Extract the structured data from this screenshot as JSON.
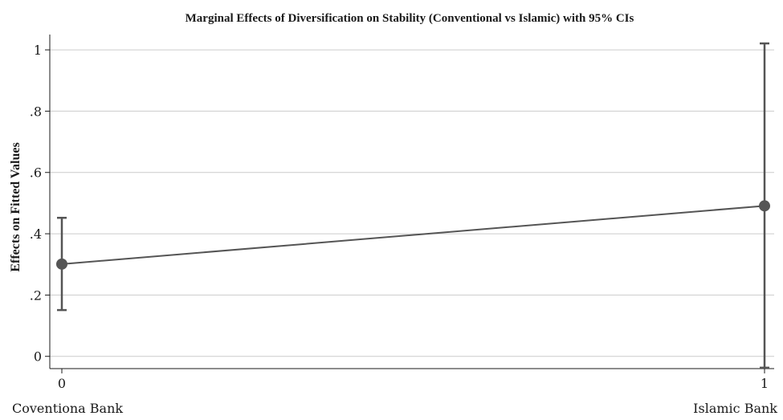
{
  "chart_data": {
    "type": "line",
    "title": "Marginal Effects of Diversification on Stability (Conventional vs Islamic) with 95% CIs",
    "xlabel": "",
    "ylabel": "Effects on Fitted Values",
    "x": [
      0,
      1
    ],
    "x_tick_labels": [
      "0",
      "1"
    ],
    "categories": [
      "Coventiona Bank",
      "Islamic Bank"
    ],
    "y_ticks": [
      0,
      0.2,
      0.4,
      0.6,
      0.8,
      1
    ],
    "y_tick_labels": [
      "0",
      ".2",
      ".4",
      ".6",
      ".8",
      "1"
    ],
    "ylim": [
      -0.04,
      1.05
    ],
    "grid": true,
    "series": [
      {
        "values": [
          0.301,
          0.491
        ],
        "ci_lower": [
          0.151,
          -0.037
        ],
        "ci_upper": [
          0.452,
          1.021
        ]
      }
    ],
    "colors": {
      "series": "#555555",
      "grid": "#cccccc",
      "axis": "#1a1a1a"
    }
  }
}
